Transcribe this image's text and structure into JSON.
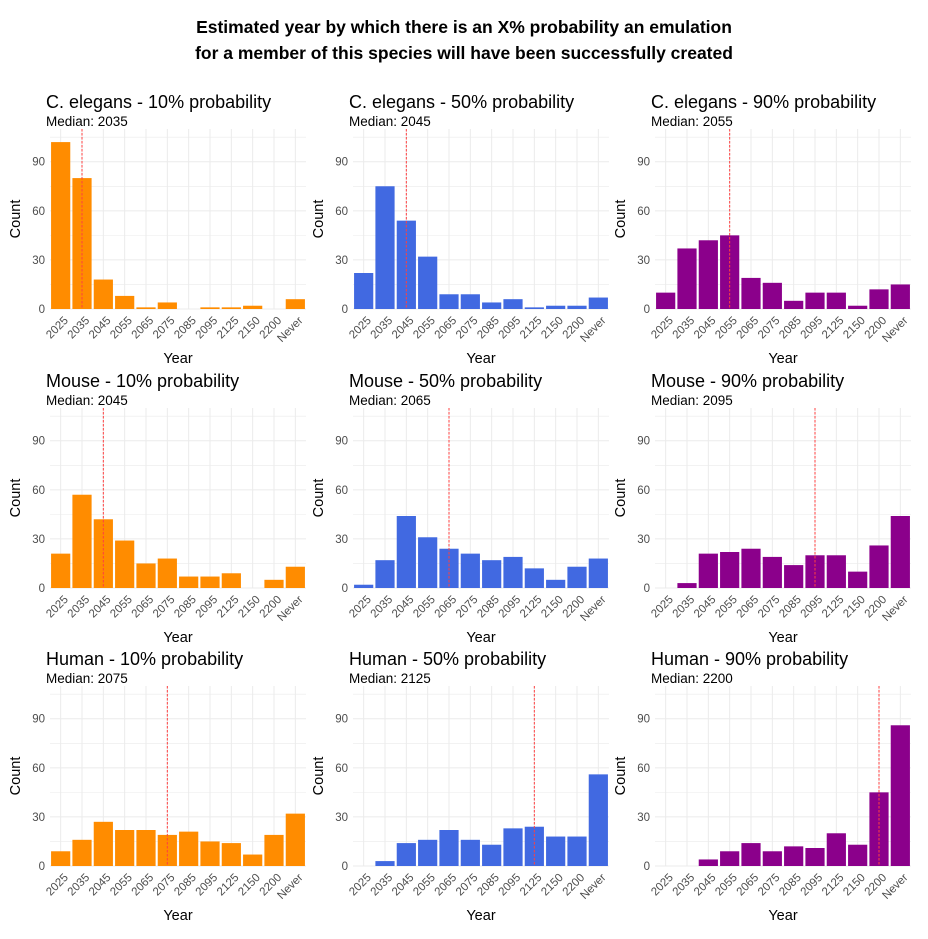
{
  "suptitle": {
    "line1": "Estimated year by which there is an X% probability an emulation",
    "line2": "for a member of this species will have been successfully created"
  },
  "colors": {
    "10": "#ff8c00",
    "50": "#4169e1",
    "90": "#8b008b",
    "median_line": "#ff4040",
    "grid": "#ebebeb"
  },
  "chart_data": [
    {
      "type": "bar",
      "title": "C. elegans - 10% probability",
      "subtitle": "Median: 2035",
      "xlabel": "Year",
      "ylabel": "Count",
      "categories": [
        "2025",
        "2035",
        "2045",
        "2055",
        "2065",
        "2075",
        "2085",
        "2095",
        "2125",
        "2150",
        "2200",
        "Never"
      ],
      "values": [
        102,
        80,
        18,
        8,
        1,
        4,
        0,
        1,
        1,
        2,
        0,
        6
      ],
      "median": "2035",
      "color": "#ff8c00",
      "ylim": [
        0,
        110
      ],
      "yticks": [
        0,
        30,
        60,
        90
      ]
    },
    {
      "type": "bar",
      "title": "C. elegans - 50% probability",
      "subtitle": "Median: 2045",
      "xlabel": "Year",
      "ylabel": "Count",
      "categories": [
        "2025",
        "2035",
        "2045",
        "2055",
        "2065",
        "2075",
        "2085",
        "2095",
        "2125",
        "2150",
        "2200",
        "Never"
      ],
      "values": [
        22,
        75,
        54,
        32,
        9,
        9,
        4,
        6,
        1,
        2,
        2,
        7
      ],
      "median": "2045",
      "color": "#4169e1",
      "ylim": [
        0,
        110
      ],
      "yticks": [
        0,
        30,
        60,
        90
      ]
    },
    {
      "type": "bar",
      "title": "C. elegans - 90% probability",
      "subtitle": "Median: 2055",
      "xlabel": "Year",
      "ylabel": "Count",
      "categories": [
        "2025",
        "2035",
        "2045",
        "2055",
        "2065",
        "2075",
        "2085",
        "2095",
        "2125",
        "2150",
        "2200",
        "Never"
      ],
      "values": [
        10,
        37,
        42,
        45,
        19,
        16,
        5,
        10,
        10,
        2,
        12,
        15
      ],
      "median": "2055",
      "color": "#8b008b",
      "ylim": [
        0,
        110
      ],
      "yticks": [
        0,
        30,
        60,
        90
      ]
    },
    {
      "type": "bar",
      "title": "Mouse - 10% probability",
      "subtitle": "Median: 2045",
      "xlabel": "Year",
      "ylabel": "Count",
      "categories": [
        "2025",
        "2035",
        "2045",
        "2055",
        "2065",
        "2075",
        "2085",
        "2095",
        "2125",
        "2150",
        "2200",
        "Never"
      ],
      "values": [
        21,
        57,
        42,
        29,
        15,
        18,
        7,
        7,
        9,
        0,
        5,
        13
      ],
      "median": "2045",
      "color": "#ff8c00",
      "ylim": [
        0,
        110
      ],
      "yticks": [
        0,
        30,
        60,
        90
      ]
    },
    {
      "type": "bar",
      "title": "Mouse - 50% probability",
      "subtitle": "Median: 2065",
      "xlabel": "Year",
      "ylabel": "Count",
      "categories": [
        "2025",
        "2035",
        "2045",
        "2055",
        "2065",
        "2075",
        "2085",
        "2095",
        "2125",
        "2150",
        "2200",
        "Never"
      ],
      "values": [
        2,
        17,
        44,
        31,
        24,
        21,
        17,
        19,
        12,
        5,
        13,
        18
      ],
      "median": "2065",
      "color": "#4169e1",
      "ylim": [
        0,
        110
      ],
      "yticks": [
        0,
        30,
        60,
        90
      ]
    },
    {
      "type": "bar",
      "title": "Mouse - 90% probability",
      "subtitle": "Median: 2095",
      "xlabel": "Year",
      "ylabel": "Count",
      "categories": [
        "2025",
        "2035",
        "2045",
        "2055",
        "2065",
        "2075",
        "2085",
        "2095",
        "2125",
        "2150",
        "2200",
        "Never"
      ],
      "values": [
        0,
        3,
        21,
        22,
        24,
        19,
        14,
        20,
        20,
        10,
        26,
        44
      ],
      "median": "2095",
      "color": "#8b008b",
      "ylim": [
        0,
        110
      ],
      "yticks": [
        0,
        30,
        60,
        90
      ]
    },
    {
      "type": "bar",
      "title": "Human - 10% probability",
      "subtitle": "Median: 2075",
      "xlabel": "Year",
      "ylabel": "Count",
      "categories": [
        "2025",
        "2035",
        "2045",
        "2055",
        "2065",
        "2075",
        "2085",
        "2095",
        "2125",
        "2150",
        "2200",
        "Never"
      ],
      "values": [
        9,
        16,
        27,
        22,
        22,
        19,
        21,
        15,
        14,
        7,
        19,
        32
      ],
      "median": "2075",
      "color": "#ff8c00",
      "ylim": [
        0,
        110
      ],
      "yticks": [
        0,
        30,
        60,
        90
      ]
    },
    {
      "type": "bar",
      "title": "Human - 50% probability",
      "subtitle": "Median: 2125",
      "xlabel": "Year",
      "ylabel": "Count",
      "categories": [
        "2025",
        "2035",
        "2045",
        "2055",
        "2065",
        "2075",
        "2085",
        "2095",
        "2125",
        "2150",
        "2200",
        "Never"
      ],
      "values": [
        0,
        3,
        14,
        16,
        22,
        16,
        13,
        23,
        24,
        18,
        18,
        56
      ],
      "median": "2125",
      "color": "#4169e1",
      "ylim": [
        0,
        110
      ],
      "yticks": [
        0,
        30,
        60,
        90
      ]
    },
    {
      "type": "bar",
      "title": "Human - 90% probability",
      "subtitle": "Median: 2200",
      "xlabel": "Year",
      "ylabel": "Count",
      "categories": [
        "2025",
        "2035",
        "2045",
        "2055",
        "2065",
        "2075",
        "2085",
        "2095",
        "2125",
        "2150",
        "2200",
        "Never"
      ],
      "values": [
        0,
        0,
        4,
        9,
        14,
        9,
        12,
        11,
        20,
        13,
        45,
        86
      ],
      "median": "2200",
      "color": "#8b008b",
      "ylim": [
        0,
        110
      ],
      "yticks": [
        0,
        30,
        60,
        90
      ]
    }
  ]
}
